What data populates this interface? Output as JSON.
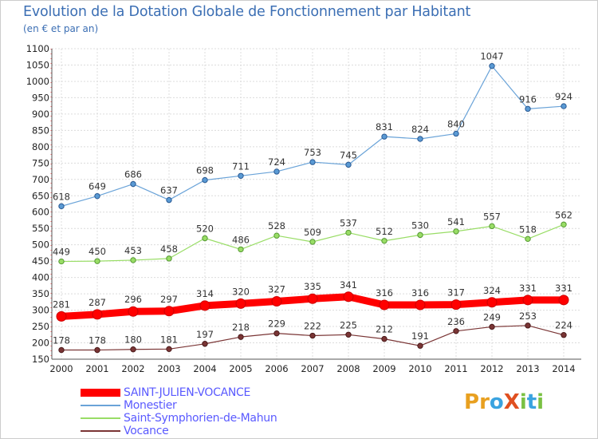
{
  "header": {
    "title": "Evolution de la Dotation Globale de Fonctionnement par Habitant",
    "subtitle": "(en € et par an)"
  },
  "logo": {
    "text": "ProXiti",
    "letters": [
      "P",
      "r",
      "o",
      "X",
      "i",
      "t",
      "i"
    ],
    "colors": [
      "#e8a020",
      "#e8a020",
      "#3aa3e0",
      "#e05020",
      "#7ac143",
      "#3aa3e0",
      "#7ac143"
    ]
  },
  "chart_data": {
    "type": "line",
    "title": "Evolution de la Dotation Globale de Fonctionnement par Habitant",
    "subtitle": "(en € et par an)",
    "xlabel": "",
    "ylabel": "",
    "x": [
      "2000",
      "2001",
      "2002",
      "2003",
      "2004",
      "2005",
      "2006",
      "2007",
      "2008",
      "2009",
      "2010",
      "2011",
      "2012",
      "2013",
      "2014"
    ],
    "ylim": [
      150,
      1100
    ],
    "yticks": [
      150,
      200,
      250,
      300,
      350,
      400,
      450,
      500,
      550,
      600,
      650,
      700,
      750,
      800,
      850,
      900,
      950,
      1000,
      1050,
      1100
    ],
    "grid": true,
    "legend_position": "bottom-left",
    "series": [
      {
        "name": "SAINT-JULIEN-VOCANCE",
        "color": "#ff0000",
        "values": [
          281,
          287,
          296,
          297,
          314,
          320,
          327,
          335,
          341,
          316,
          316,
          317,
          324,
          331,
          331
        ]
      },
      {
        "name": "Monestier",
        "color": "#6aa3d8",
        "values": [
          618,
          649,
          686,
          637,
          698,
          711,
          724,
          753,
          745,
          831,
          824,
          840,
          1047,
          916,
          924
        ]
      },
      {
        "name": "Saint-Symphorien-de-Mahun",
        "color": "#99dd66",
        "values": [
          449,
          450,
          453,
          458,
          520,
          486,
          528,
          509,
          537,
          512,
          530,
          541,
          557,
          518,
          562
        ]
      },
      {
        "name": "Vocance",
        "color": "#7a3535",
        "values": [
          178,
          178,
          180,
          181,
          197,
          218,
          229,
          222,
          225,
          212,
          191,
          236,
          249,
          253,
          224
        ]
      }
    ]
  }
}
